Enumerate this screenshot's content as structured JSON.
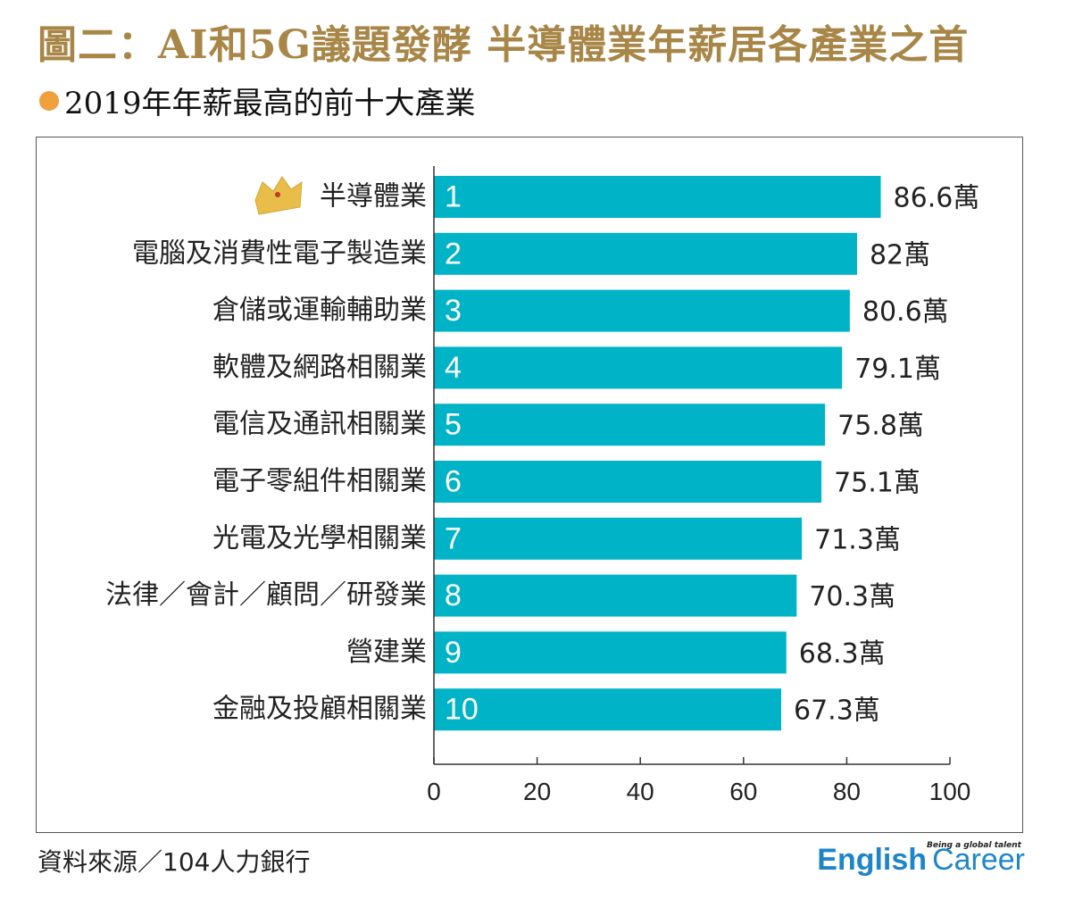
{
  "title": "圖二：AI和5G議題發酵 半導體業年薪居各產業之首",
  "subtitle": "2019年年薪最高的前十大產業",
  "source": "資料來源／104人力銀行",
  "logo": {
    "tagline": "Being a global talent",
    "word1": "English",
    "word2": "Career"
  },
  "colors": {
    "bar": "#00b3c6",
    "title": "#a88647",
    "bullet": "#f0a03c",
    "logo": "#1e86c8",
    "crown": "#e9bd4a"
  },
  "chart_data": {
    "type": "bar",
    "orientation": "horizontal",
    "categories": [
      "半導體業",
      "電腦及消費性電子製造業",
      "倉儲或運輸輔助業",
      "軟體及網路相關業",
      "電信及通訊相關業",
      "電子零組件相關業",
      "光電及光學相關業",
      "法律／會計／顧問／研發業",
      "營建業",
      "金融及投顧相關業"
    ],
    "ranks": [
      "1",
      "2",
      "3",
      "4",
      "5",
      "6",
      "7",
      "8",
      "9",
      "10"
    ],
    "values": [
      86.6,
      82,
      80.6,
      79.1,
      75.8,
      75.1,
      71.3,
      70.3,
      68.3,
      67.3
    ],
    "value_labels": [
      "86.6萬",
      "82萬",
      "80.6萬",
      "79.1萬",
      "75.8萬",
      "75.1萬",
      "71.3萬",
      "70.3萬",
      "68.3萬",
      "67.3萬"
    ],
    "xlim": [
      0,
      100
    ],
    "xticks": [
      0,
      20,
      40,
      60,
      80,
      100
    ],
    "grid": false,
    "top_marker": "crown-icon"
  }
}
